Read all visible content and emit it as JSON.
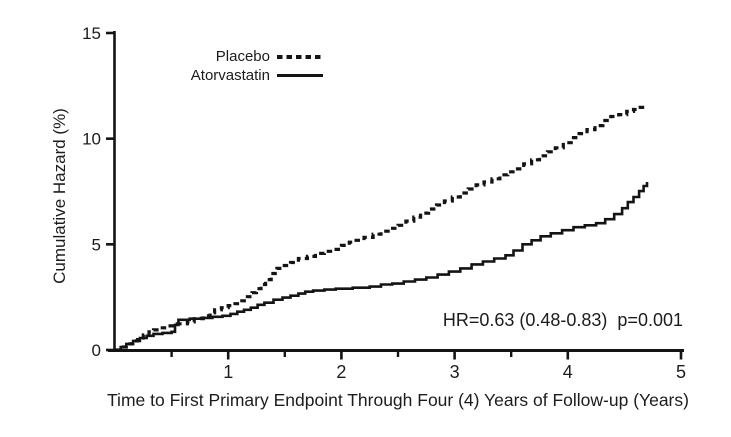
{
  "figure": {
    "line_color": "#141414",
    "text_color": "#1c1c1c",
    "background": "#ffffff"
  },
  "annotation": {
    "hazard_ratio_text": "HR=0.63 (0.48-0.83)  p=0.001"
  },
  "legend": {
    "items": [
      {
        "label": "Placebo",
        "style": "dashed"
      },
      {
        "label": "Atorvastatin",
        "style": "solid"
      }
    ]
  },
  "chart_data": {
    "type": "line",
    "subtype": "step-after",
    "title": "",
    "xlabel": "Time to First Primary Endpoint Through Four (4) Years of Follow-up (Years)",
    "ylabel": "Cumulative Hazard (%)",
    "xlim": [
      0,
      5
    ],
    "ylim": [
      0,
      15
    ],
    "grid": false,
    "legend_position": "upper-left-inside",
    "x_major_ticks": [
      1,
      2,
      3,
      4,
      5
    ],
    "x_minor_ticks": [
      0.5,
      1.5,
      2.5,
      3.5
    ],
    "y_ticks": [
      0,
      5,
      10,
      15
    ],
    "annotation": "HR=0.63 (0.48-0.83)  p=0.001",
    "series": [
      {
        "name": "Placebo",
        "style": "dashed",
        "points": [
          [
            0,
            0
          ],
          [
            0.05,
            0.14
          ],
          [
            0.1,
            0.29
          ],
          [
            0.15,
            0.43
          ],
          [
            0.2,
            0.57
          ],
          [
            0.25,
            0.71
          ],
          [
            0.3,
            0.86
          ],
          [
            0.34,
            0.95
          ],
          [
            0.4,
            1.05
          ],
          [
            0.47,
            1.14
          ],
          [
            0.55,
            1.24
          ],
          [
            0.64,
            1.33
          ],
          [
            0.7,
            1.48
          ],
          [
            0.78,
            1.62
          ],
          [
            0.84,
            1.76
          ],
          [
            0.88,
            1.9
          ],
          [
            0.94,
            2.0
          ],
          [
            1.0,
            2.1
          ],
          [
            1.06,
            2.19
          ],
          [
            1.12,
            2.33
          ],
          [
            1.17,
            2.52
          ],
          [
            1.21,
            2.71
          ],
          [
            1.25,
            2.9
          ],
          [
            1.29,
            3.1
          ],
          [
            1.33,
            3.33
          ],
          [
            1.38,
            3.62
          ],
          [
            1.43,
            3.86
          ],
          [
            1.48,
            4.0
          ],
          [
            1.55,
            4.14
          ],
          [
            1.62,
            4.33
          ],
          [
            1.7,
            4.43
          ],
          [
            1.77,
            4.57
          ],
          [
            1.85,
            4.67
          ],
          [
            1.93,
            4.76
          ],
          [
            2.0,
            4.95
          ],
          [
            2.07,
            5.1
          ],
          [
            2.13,
            5.19
          ],
          [
            2.2,
            5.33
          ],
          [
            2.28,
            5.48
          ],
          [
            2.35,
            5.62
          ],
          [
            2.43,
            5.76
          ],
          [
            2.5,
            5.9
          ],
          [
            2.57,
            6.1
          ],
          [
            2.64,
            6.29
          ],
          [
            2.7,
            6.48
          ],
          [
            2.77,
            6.67
          ],
          [
            2.84,
            6.86
          ],
          [
            2.91,
            7.05
          ],
          [
            2.98,
            7.24
          ],
          [
            3.05,
            7.43
          ],
          [
            3.12,
            7.62
          ],
          [
            3.19,
            7.81
          ],
          [
            3.26,
            7.95
          ],
          [
            3.33,
            8.1
          ],
          [
            3.4,
            8.29
          ],
          [
            3.47,
            8.43
          ],
          [
            3.54,
            8.57
          ],
          [
            3.61,
            8.81
          ],
          [
            3.68,
            9.0
          ],
          [
            3.75,
            9.19
          ],
          [
            3.82,
            9.38
          ],
          [
            3.89,
            9.57
          ],
          [
            3.96,
            9.81
          ],
          [
            4.03,
            10.05
          ],
          [
            4.1,
            10.24
          ],
          [
            4.17,
            10.43
          ],
          [
            4.24,
            10.62
          ],
          [
            4.31,
            10.86
          ],
          [
            4.38,
            11.05
          ],
          [
            4.45,
            11.14
          ],
          [
            4.52,
            11.29
          ],
          [
            4.58,
            11.38
          ],
          [
            4.64,
            11.48
          ],
          [
            4.7,
            11.52
          ]
        ]
      },
      {
        "name": "Atorvastatin",
        "style": "solid",
        "points": [
          [
            0,
            0
          ],
          [
            0.05,
            0.14
          ],
          [
            0.1,
            0.29
          ],
          [
            0.16,
            0.43
          ],
          [
            0.22,
            0.57
          ],
          [
            0.28,
            0.67
          ],
          [
            0.34,
            0.76
          ],
          [
            0.42,
            0.81
          ],
          [
            0.5,
            0.86
          ],
          [
            0.53,
            1.19
          ],
          [
            0.56,
            1.43
          ],
          [
            0.66,
            1.48
          ],
          [
            0.76,
            1.52
          ],
          [
            0.86,
            1.57
          ],
          [
            0.95,
            1.62
          ],
          [
            1.02,
            1.71
          ],
          [
            1.08,
            1.81
          ],
          [
            1.14,
            1.9
          ],
          [
            1.2,
            2.0
          ],
          [
            1.26,
            2.14
          ],
          [
            1.32,
            2.24
          ],
          [
            1.4,
            2.38
          ],
          [
            1.48,
            2.48
          ],
          [
            1.55,
            2.57
          ],
          [
            1.62,
            2.67
          ],
          [
            1.68,
            2.76
          ],
          [
            1.75,
            2.81
          ],
          [
            1.85,
            2.86
          ],
          [
            1.95,
            2.9
          ],
          [
            2.1,
            2.95
          ],
          [
            2.25,
            3.0
          ],
          [
            2.35,
            3.1
          ],
          [
            2.45,
            3.14
          ],
          [
            2.55,
            3.24
          ],
          [
            2.65,
            3.33
          ],
          [
            2.75,
            3.43
          ],
          [
            2.85,
            3.57
          ],
          [
            2.95,
            3.71
          ],
          [
            3.05,
            3.86
          ],
          [
            3.15,
            4.05
          ],
          [
            3.25,
            4.19
          ],
          [
            3.35,
            4.33
          ],
          [
            3.45,
            4.48
          ],
          [
            3.52,
            4.71
          ],
          [
            3.6,
            5.0
          ],
          [
            3.68,
            5.19
          ],
          [
            3.76,
            5.38
          ],
          [
            3.85,
            5.52
          ],
          [
            3.95,
            5.67
          ],
          [
            4.05,
            5.81
          ],
          [
            4.15,
            5.9
          ],
          [
            4.25,
            6.0
          ],
          [
            4.33,
            6.19
          ],
          [
            4.41,
            6.43
          ],
          [
            4.48,
            6.71
          ],
          [
            4.53,
            7.0
          ],
          [
            4.58,
            7.24
          ],
          [
            4.63,
            7.52
          ],
          [
            4.67,
            7.76
          ],
          [
            4.7,
            7.95
          ]
        ]
      }
    ]
  }
}
